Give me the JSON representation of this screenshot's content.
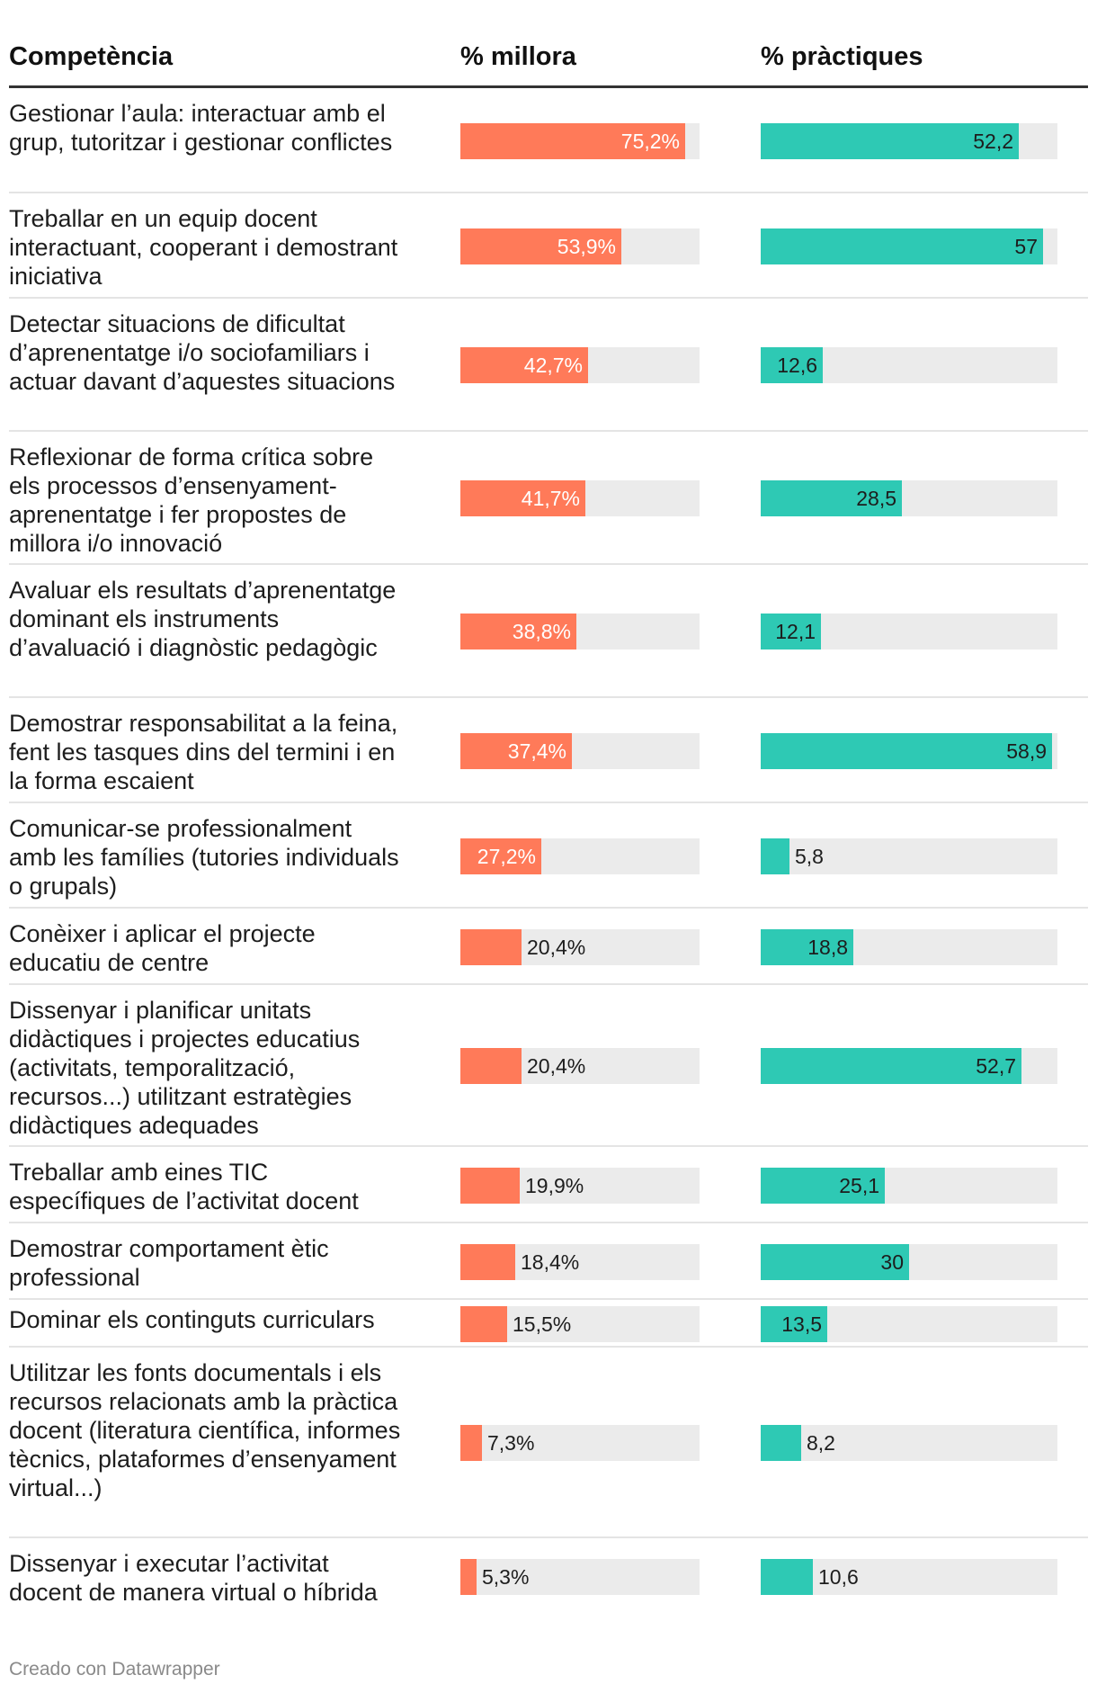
{
  "chart_data": {
    "type": "table",
    "columns": [
      "Competència",
      "% millora",
      "% pràctiques"
    ],
    "footer": "Creado con Datawrapper",
    "colors": {
      "millora": "#ff7a59",
      "practiques": "#2ec9b4",
      "track": "#ebebeb"
    },
    "millora_max": 80,
    "practiques_max": 60,
    "rows": [
      {
        "label": "Gestionar l’aula: interactuar amb el grup, tutoritzar i gestionar conflictes",
        "millora": 75.2,
        "millora_label": "75,2%",
        "practiques": 52.2,
        "practiques_label": "52,2"
      },
      {
        "label": "Treballar en un equip docent interactuant, cooperant i demostrant iniciativa",
        "millora": 53.9,
        "millora_label": "53,9%",
        "practiques": 57,
        "practiques_label": "57"
      },
      {
        "label": "Detectar situacions de dificultat d’aprenentatge i/o sociofamiliars i actuar davant d’aquestes situacions",
        "millora": 42.7,
        "millora_label": "42,7%",
        "practiques": 12.6,
        "practiques_label": "12,6"
      },
      {
        "label": "Reflexionar de forma crítica sobre els processos d’ensenyament-aprenentatge i fer propostes de millora i/o innovació",
        "millora": 41.7,
        "millora_label": "41,7%",
        "practiques": 28.5,
        "practiques_label": "28,5"
      },
      {
        "label": "Avaluar els resultats d’aprenentatge dominant els instruments d’avaluació i diagnòstic pedagògic",
        "millora": 38.8,
        "millora_label": "38,8%",
        "practiques": 12.1,
        "practiques_label": "12,1"
      },
      {
        "label": "Demostrar responsabilitat a la feina, fent les tasques dins del termini i en la forma escaient",
        "millora": 37.4,
        "millora_label": "37,4%",
        "practiques": 58.9,
        "practiques_label": "58,9"
      },
      {
        "label": "Comunicar-se professionalment amb les famílies (tutories individuals o grupals)",
        "millora": 27.2,
        "millora_label": "27,2%",
        "practiques": 5.8,
        "practiques_label": "5,8"
      },
      {
        "label": "Conèixer i aplicar el projecte educatiu de centre",
        "millora": 20.4,
        "millora_label": "20,4%",
        "practiques": 18.8,
        "practiques_label": "18,8"
      },
      {
        "label": "Dissenyar i planificar unitats didàctiques i projectes educatius (activitats, temporalització, recursos...) utilitzant estratègies didàctiques adequades",
        "millora": 20.4,
        "millora_label": "20,4%",
        "practiques": 52.7,
        "practiques_label": "52,7"
      },
      {
        "label": "Treballar amb eines TIC específiques de l’activitat docent",
        "millora": 19.9,
        "millora_label": "19,9%",
        "practiques": 25.1,
        "practiques_label": "25,1"
      },
      {
        "label": "Demostrar comportament ètic professional",
        "millora": 18.4,
        "millora_label": "18,4%",
        "practiques": 30,
        "practiques_label": "30"
      },
      {
        "label": "Dominar els continguts curriculars",
        "millora": 15.5,
        "millora_label": "15,5%",
        "practiques": 13.5,
        "practiques_label": "13,5"
      },
      {
        "label": "Utilitzar les fonts documentals i els recursos relacionats amb la pràctica docent (literatura científica, informes tècnics, plataformes d’ensenyament virtual...)",
        "millora": 7.3,
        "millora_label": "7,3%",
        "practiques": 8.2,
        "practiques_label": "8,2"
      },
      {
        "label": "Dissenyar i executar l’activitat docent de manera virtual o híbrida",
        "millora": 5.3,
        "millora_label": "5,3%",
        "practiques": 10.6,
        "practiques_label": "10,6"
      }
    ]
  }
}
